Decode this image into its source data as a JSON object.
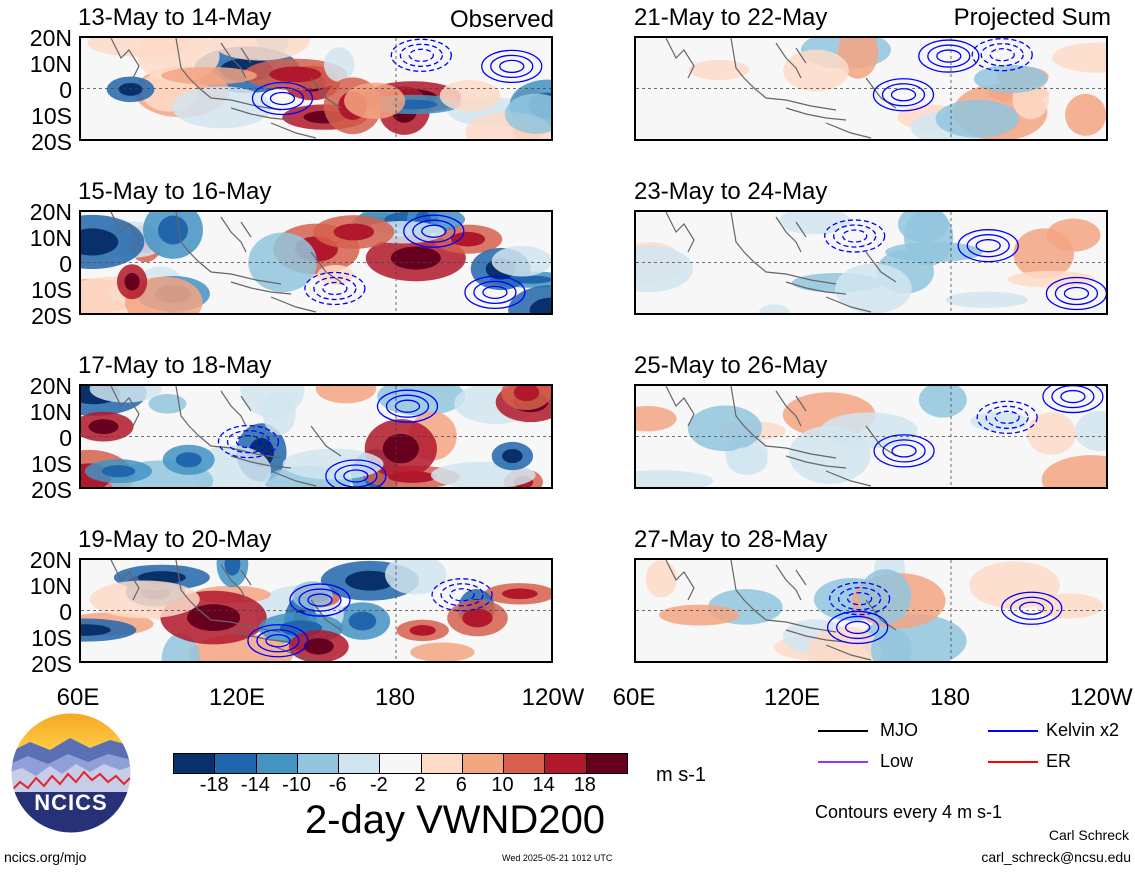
{
  "header": {
    "observed_label": "Observed",
    "projected_label": "Projected Sum"
  },
  "panels_left": [
    {
      "title": "13-May to 14-May"
    },
    {
      "title": "15-May to 16-May"
    },
    {
      "title": "17-May to 18-May"
    },
    {
      "title": "19-May to 20-May"
    }
  ],
  "panels_right": [
    {
      "title": "21-May to 22-May"
    },
    {
      "title": "23-May to 24-May"
    },
    {
      "title": "25-May to 26-May"
    },
    {
      "title": "27-May to 28-May"
    }
  ],
  "y_ticks": [
    "20N",
    "10N",
    "0",
    "10S",
    "20S"
  ],
  "x_ticks": [
    "60E",
    "120E",
    "180",
    "120W"
  ],
  "colorbar": {
    "labels": [
      "-18",
      "-14",
      "-10",
      "-6",
      "-2",
      "2",
      "6",
      "10",
      "14",
      "18"
    ],
    "colors": [
      "#08306b",
      "#2166ac",
      "#4393c3",
      "#92c5de",
      "#d1e5f0",
      "#f7f7f7",
      "#fddbc7",
      "#f4a582",
      "#d6604d",
      "#b2182b",
      "#67001f"
    ],
    "units": "m s-1"
  },
  "title": "2-day VWND200",
  "legend": {
    "mjo": "MJO",
    "kelvin": "Kelvin x2",
    "low": "Low",
    "er": "ER",
    "contours_note": "Contours every 4 m s-1",
    "colors": {
      "mjo": "#000000",
      "kelvin": "#0000ff",
      "low": "#9933ff",
      "er": "#ff0000"
    }
  },
  "logo": {
    "text": "NCICS"
  },
  "footer": {
    "url": "ncics.org/mjo",
    "timestamp": "Wed 2025-05-21 1012 UTC",
    "author": "Carl Schreck",
    "email": "carl_schreck@ncsu.edu"
  }
}
